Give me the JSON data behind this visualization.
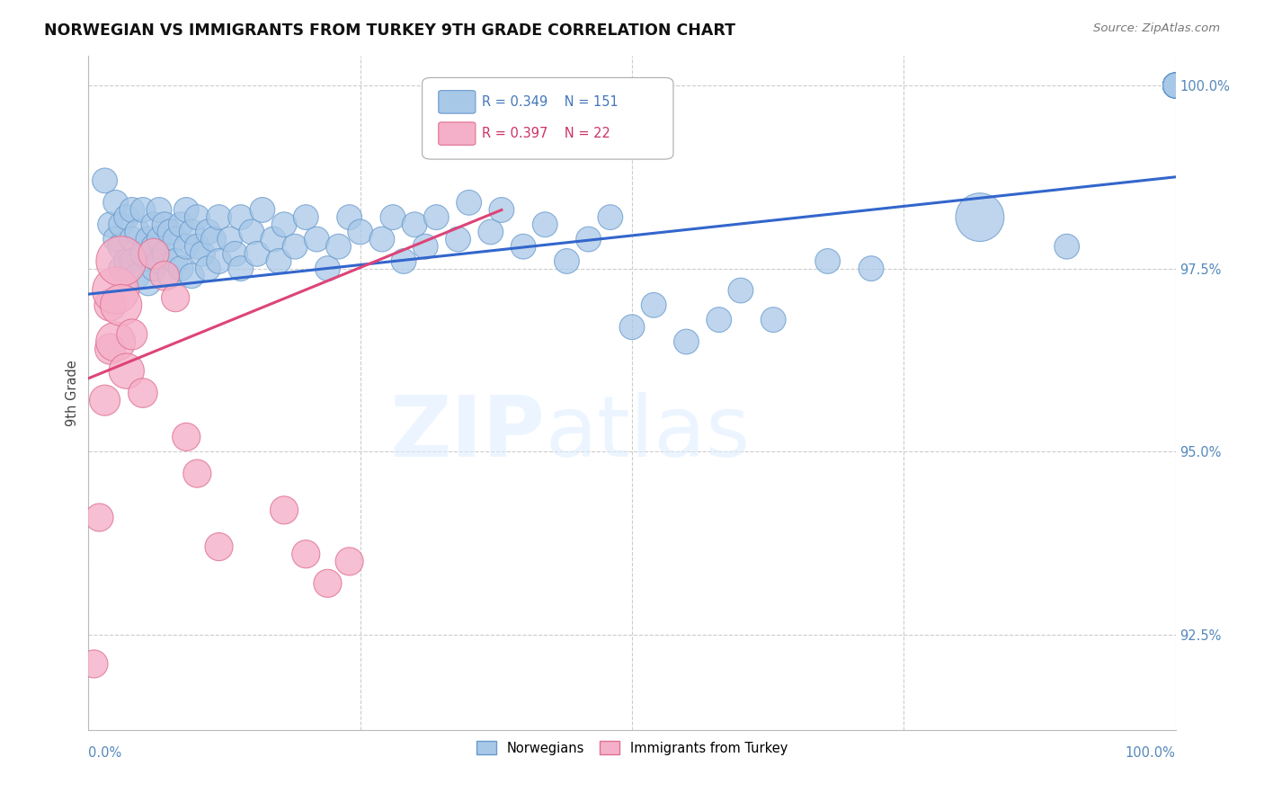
{
  "title": "NORWEGIAN VS IMMIGRANTS FROM TURKEY 9TH GRADE CORRELATION CHART",
  "source": "Source: ZipAtlas.com",
  "ylabel": "9th Grade",
  "xlim": [
    0.0,
    1.0
  ],
  "ylim": [
    0.912,
    1.004
  ],
  "yticks": [
    0.925,
    0.95,
    0.975,
    1.0
  ],
  "ytick_labels": [
    "92.5%",
    "95.0%",
    "97.5%",
    "100.0%"
  ],
  "blue_color": "#a8c8e8",
  "pink_color": "#f4b0c8",
  "blue_edge_color": "#6699cc",
  "pink_edge_color": "#e07090",
  "blue_line_color": "#3366cc",
  "pink_line_color": "#dd4477",
  "blue_line": [
    0.0,
    1.0,
    0.9715,
    0.9875
  ],
  "pink_line": [
    0.0,
    0.38,
    0.96,
    0.983
  ],
  "blue_x": [
    0.015,
    0.02,
    0.025,
    0.025,
    0.03,
    0.03,
    0.03,
    0.035,
    0.035,
    0.04,
    0.04,
    0.04,
    0.045,
    0.045,
    0.05,
    0.05,
    0.055,
    0.055,
    0.06,
    0.06,
    0.06,
    0.065,
    0.065,
    0.065,
    0.07,
    0.07,
    0.075,
    0.075,
    0.08,
    0.08,
    0.085,
    0.085,
    0.09,
    0.09,
    0.095,
    0.095,
    0.1,
    0.1,
    0.105,
    0.11,
    0.11,
    0.115,
    0.12,
    0.12,
    0.13,
    0.135,
    0.14,
    0.14,
    0.15,
    0.155,
    0.16,
    0.17,
    0.175,
    0.18,
    0.19,
    0.2,
    0.21,
    0.22,
    0.23,
    0.24,
    0.25,
    0.27,
    0.28,
    0.29,
    0.3,
    0.31,
    0.32,
    0.34,
    0.35,
    0.37,
    0.38,
    0.4,
    0.42,
    0.44,
    0.46,
    0.48,
    0.5,
    0.52,
    0.55,
    0.58,
    0.6,
    0.63,
    0.68,
    0.72,
    0.82,
    0.9,
    1.0,
    1.0,
    1.0,
    1.0,
    1.0,
    1.0,
    1.0,
    1.0,
    1.0,
    1.0,
    1.0,
    1.0,
    1.0,
    1.0,
    1.0,
    1.0,
    1.0,
    1.0,
    1.0,
    1.0,
    1.0,
    1.0,
    1.0,
    1.0,
    1.0,
    1.0,
    1.0,
    1.0,
    1.0,
    1.0,
    1.0,
    1.0,
    1.0,
    1.0,
    1.0,
    1.0,
    1.0,
    1.0,
    1.0,
    1.0,
    1.0,
    1.0,
    1.0,
    1.0,
    1.0,
    1.0,
    1.0,
    1.0,
    1.0,
    1.0,
    1.0
  ],
  "blue_y": [
    0.987,
    0.981,
    0.979,
    0.984,
    0.978,
    0.981,
    0.975,
    0.982,
    0.976,
    0.979,
    0.983,
    0.976,
    0.98,
    0.974,
    0.977,
    0.983,
    0.979,
    0.973,
    0.978,
    0.981,
    0.975,
    0.979,
    0.983,
    0.976,
    0.981,
    0.977,
    0.98,
    0.974,
    0.979,
    0.976,
    0.981,
    0.975,
    0.978,
    0.983,
    0.98,
    0.974,
    0.978,
    0.982,
    0.977,
    0.98,
    0.975,
    0.979,
    0.976,
    0.982,
    0.979,
    0.977,
    0.982,
    0.975,
    0.98,
    0.977,
    0.983,
    0.979,
    0.976,
    0.981,
    0.978,
    0.982,
    0.979,
    0.975,
    0.978,
    0.982,
    0.98,
    0.979,
    0.982,
    0.976,
    0.981,
    0.978,
    0.982,
    0.979,
    0.984,
    0.98,
    0.983,
    0.978,
    0.981,
    0.976,
    0.979,
    0.982,
    0.967,
    0.97,
    0.965,
    0.968,
    0.972,
    0.968,
    0.976,
    0.975,
    0.982,
    0.978,
    1.0,
    1.0,
    1.0,
    1.0,
    1.0,
    1.0,
    1.0,
    1.0,
    1.0,
    1.0,
    1.0,
    1.0,
    1.0,
    1.0,
    1.0,
    1.0,
    1.0,
    1.0,
    1.0,
    1.0,
    1.0,
    1.0,
    1.0,
    1.0,
    1.0,
    1.0,
    1.0,
    1.0,
    1.0,
    1.0,
    1.0,
    1.0,
    1.0,
    1.0,
    1.0,
    1.0,
    1.0,
    1.0,
    1.0,
    1.0,
    1.0,
    1.0,
    1.0,
    1.0,
    1.0,
    1.0,
    1.0,
    1.0,
    1.0,
    1.0,
    1.0
  ],
  "blue_s": [
    80,
    80,
    80,
    80,
    90,
    80,
    80,
    80,
    80,
    80,
    80,
    80,
    80,
    80,
    80,
    80,
    80,
    80,
    80,
    80,
    80,
    80,
    80,
    80,
    80,
    80,
    80,
    80,
    80,
    80,
    80,
    80,
    80,
    80,
    80,
    80,
    80,
    80,
    80,
    80,
    80,
    80,
    80,
    80,
    80,
    80,
    80,
    80,
    80,
    80,
    80,
    80,
    80,
    80,
    80,
    80,
    80,
    80,
    80,
    80,
    80,
    80,
    80,
    80,
    80,
    80,
    80,
    80,
    80,
    80,
    80,
    80,
    80,
    80,
    80,
    80,
    80,
    80,
    80,
    80,
    80,
    80,
    80,
    80,
    300,
    80,
    80,
    80,
    80,
    80,
    80,
    80,
    80,
    80,
    80,
    80,
    80,
    80,
    80,
    80,
    80,
    80,
    80,
    80,
    80,
    80,
    80,
    80,
    80,
    80,
    80,
    80,
    80,
    80,
    80,
    80,
    80,
    80,
    80,
    80,
    80,
    80,
    80,
    80,
    80,
    80,
    80,
    80,
    80,
    80,
    80,
    80,
    80,
    80,
    80,
    80,
    80
  ],
  "pink_x": [
    0.005,
    0.01,
    0.015,
    0.02,
    0.02,
    0.025,
    0.025,
    0.03,
    0.03,
    0.035,
    0.04,
    0.05,
    0.06,
    0.07,
    0.08,
    0.09,
    0.1,
    0.12,
    0.18,
    0.2,
    0.22,
    0.24
  ],
  "pink_y": [
    0.921,
    0.941,
    0.957,
    0.97,
    0.964,
    0.972,
    0.965,
    0.976,
    0.97,
    0.961,
    0.966,
    0.958,
    0.977,
    0.974,
    0.971,
    0.952,
    0.947,
    0.937,
    0.942,
    0.936,
    0.932,
    0.935
  ],
  "pink_s": [
    100,
    100,
    120,
    130,
    120,
    280,
    200,
    320,
    220,
    160,
    120,
    110,
    120,
    110,
    100,
    100,
    100,
    100,
    100,
    100,
    100,
    100
  ],
  "legend_r_blue": "R = 0.349",
  "legend_n_blue": "N = 151",
  "legend_r_pink": "R = 0.397",
  "legend_n_pink": "N = 22"
}
